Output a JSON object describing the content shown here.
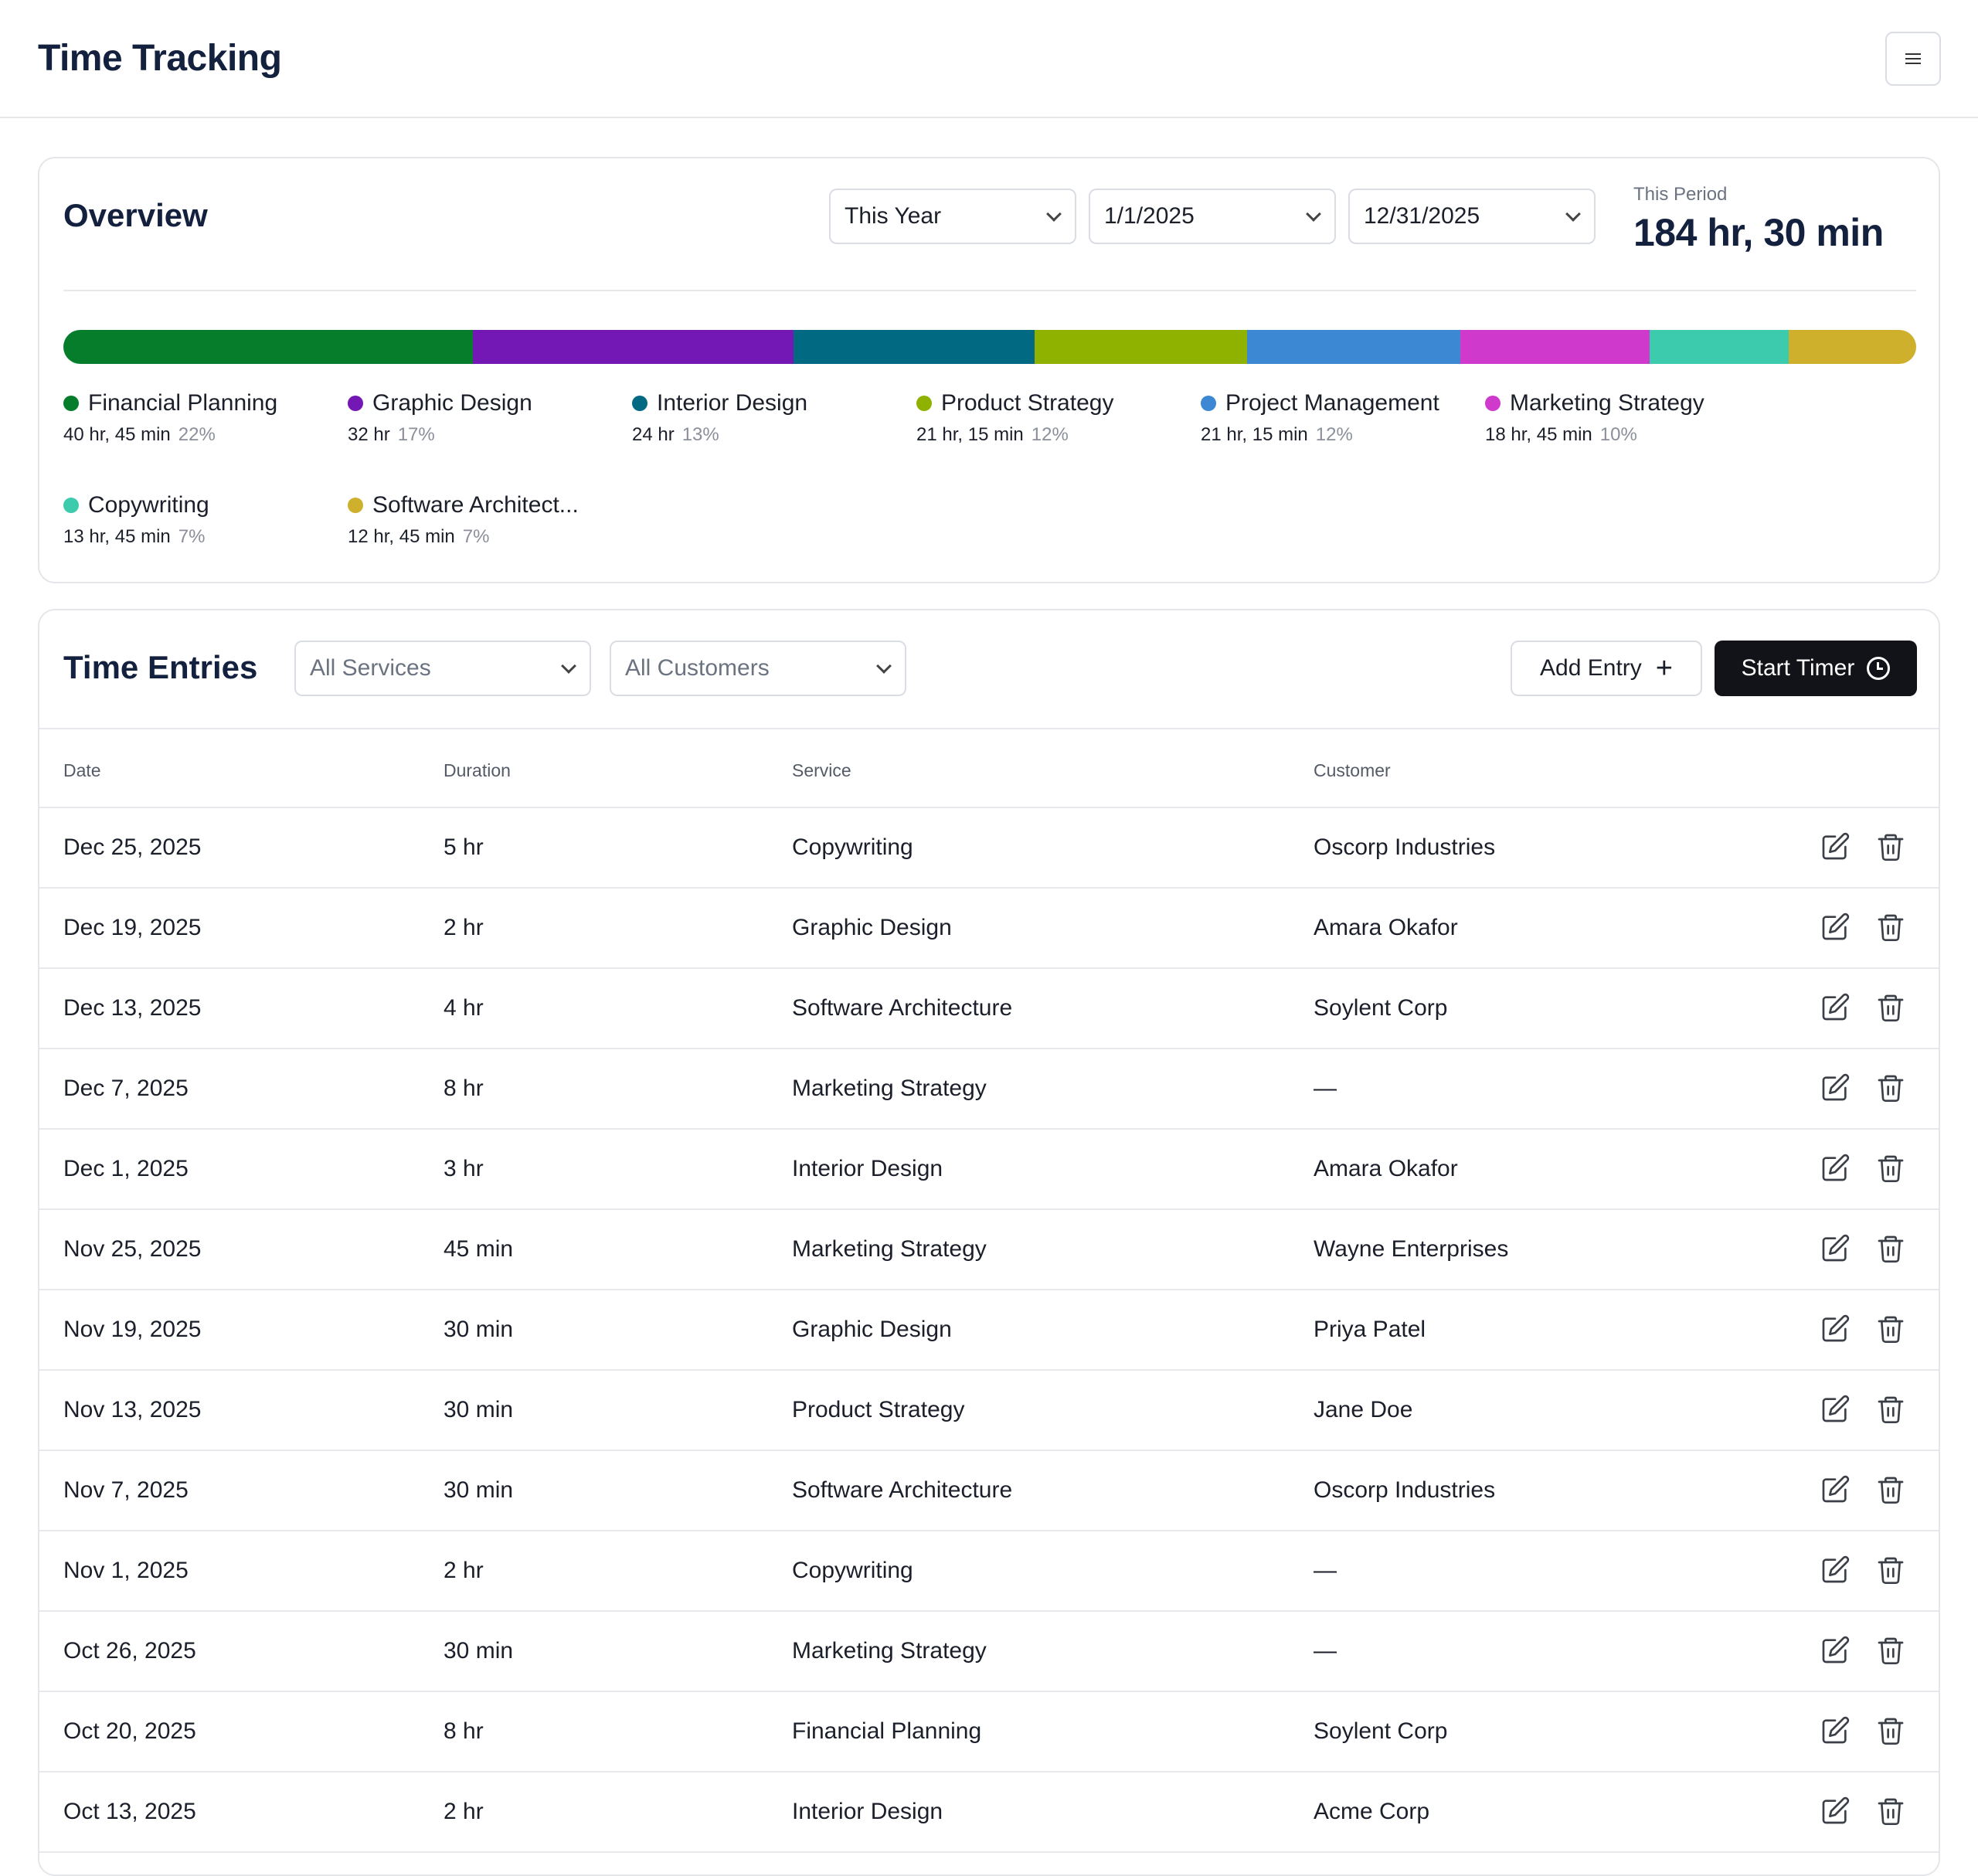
{
  "header": {
    "title": "Time Tracking"
  },
  "overview": {
    "title": "Overview",
    "range_select": "This Year",
    "start_date": "1/1/2025",
    "end_date": "12/31/2025",
    "period_label": "This Period",
    "period_total": "184 hr, 30 min",
    "legend": [
      {
        "name": "Financial Planning",
        "time": "40 hr, 45 min",
        "pct": "22%",
        "share": 0.221,
        "color": "#067d2b"
      },
      {
        "name": "Graphic Design",
        "time": "32 hr",
        "pct": "17%",
        "share": 0.173,
        "color": "#7317b5"
      },
      {
        "name": "Interior Design",
        "time": "24 hr",
        "pct": "13%",
        "share": 0.13,
        "color": "#016a82"
      },
      {
        "name": "Product Strategy",
        "time": "21 hr, 15 min",
        "pct": "12%",
        "share": 0.115,
        "color": "#8fb100"
      },
      {
        "name": "Project Management",
        "time": "21 hr, 15 min",
        "pct": "12%",
        "share": 0.115,
        "color": "#3d88d2"
      },
      {
        "name": "Marketing Strategy",
        "time": "18 hr, 45 min",
        "pct": "10%",
        "share": 0.102,
        "color": "#cf39cc"
      },
      {
        "name": "Copywriting",
        "time": "13 hr, 45 min",
        "pct": "7%",
        "share": 0.075,
        "color": "#3dcbad"
      },
      {
        "name": "Software Architect...",
        "time": "12 hr, 45 min",
        "pct": "7%",
        "share": 0.069,
        "color": "#cfb02d"
      }
    ]
  },
  "entries": {
    "title": "Time Entries",
    "services_filter": "All Services",
    "customers_filter": "All Customers",
    "add_label": "Add Entry",
    "timer_label": "Start Timer",
    "columns": {
      "date": "Date",
      "duration": "Duration",
      "service": "Service",
      "customer": "Customer"
    },
    "rows": [
      {
        "date": "Dec 25, 2025",
        "duration": "5 hr",
        "service": "Copywriting",
        "customer": "Oscorp Industries"
      },
      {
        "date": "Dec 19, 2025",
        "duration": "2 hr",
        "service": "Graphic Design",
        "customer": "Amara Okafor"
      },
      {
        "date": "Dec 13, 2025",
        "duration": "4 hr",
        "service": "Software Architecture",
        "customer": "Soylent Corp"
      },
      {
        "date": "Dec 7, 2025",
        "duration": "8 hr",
        "service": "Marketing Strategy",
        "customer": "—"
      },
      {
        "date": "Dec 1, 2025",
        "duration": "3 hr",
        "service": "Interior Design",
        "customer": "Amara Okafor"
      },
      {
        "date": "Nov 25, 2025",
        "duration": "45 min",
        "service": "Marketing Strategy",
        "customer": "Wayne Enterprises"
      },
      {
        "date": "Nov 19, 2025",
        "duration": "30 min",
        "service": "Graphic Design",
        "customer": "Priya Patel"
      },
      {
        "date": "Nov 13, 2025",
        "duration": "30 min",
        "service": "Product Strategy",
        "customer": "Jane Doe"
      },
      {
        "date": "Nov 7, 2025",
        "duration": "30 min",
        "service": "Software Architecture",
        "customer": "Oscorp Industries"
      },
      {
        "date": "Nov 1, 2025",
        "duration": "2 hr",
        "service": "Copywriting",
        "customer": "—"
      },
      {
        "date": "Oct 26, 2025",
        "duration": "30 min",
        "service": "Marketing Strategy",
        "customer": "—"
      },
      {
        "date": "Oct 20, 2025",
        "duration": "8 hr",
        "service": "Financial Planning",
        "customer": "Soylent Corp"
      },
      {
        "date": "Oct 13, 2025",
        "duration": "2 hr",
        "service": "Interior Design",
        "customer": "Acme Corp"
      }
    ]
  }
}
